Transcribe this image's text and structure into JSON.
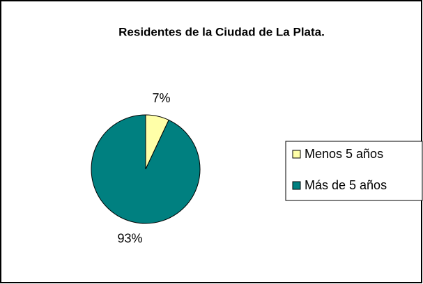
{
  "chart_data": {
    "type": "pie",
    "title": "Residentes de la Ciudad de La Plata.",
    "categories": [
      "Menos 5 años",
      "Más de 5 años"
    ],
    "values": [
      7,
      93
    ],
    "value_labels": [
      "7%",
      "93%"
    ],
    "colors": [
      "#ffffa8",
      "#008080"
    ],
    "legend": "right"
  }
}
